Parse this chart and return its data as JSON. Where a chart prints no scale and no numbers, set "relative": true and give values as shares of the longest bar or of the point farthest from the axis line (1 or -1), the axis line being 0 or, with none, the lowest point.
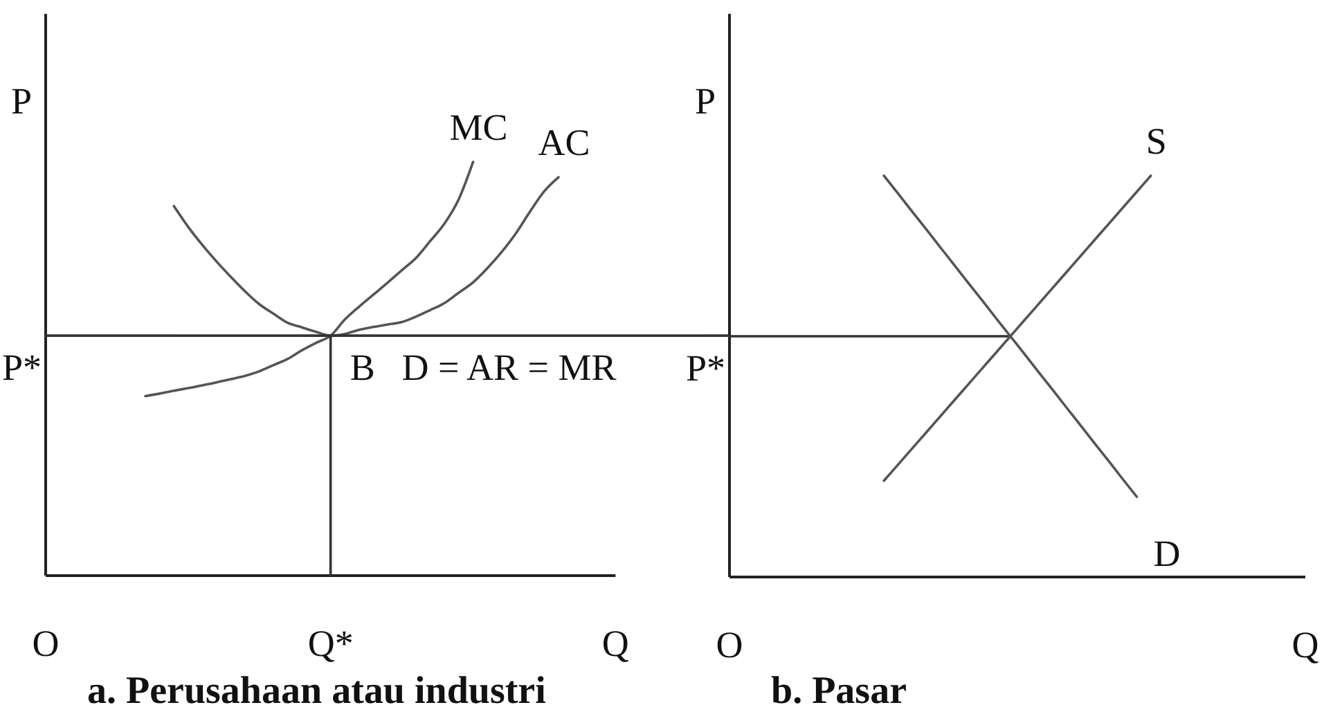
{
  "chart_data": [
    {
      "type": "line",
      "title": "a. Perusahaan atau industri",
      "ylabel": "P",
      "relative": true,
      "categories": [
        "O",
        null,
        null,
        null,
        null,
        null,
        null,
        null,
        null,
        null,
        null,
        null,
        null,
        null,
        null,
        null,
        null,
        null,
        null,
        null,
        "Q*",
        null,
        null,
        null,
        null,
        null,
        null,
        null,
        null,
        null,
        null,
        null,
        null,
        null,
        null,
        null,
        null,
        null,
        null,
        null,
        "Q",
        null,
        null,
        null,
        null,
        null,
        null,
        null,
        null
      ],
      "annotations": [
        {
          "text": "P*",
          "x": "O",
          "y": 0.58
        },
        {
          "text": "B",
          "x": "Q*",
          "y": 0.58
        }
      ],
      "series": [
        {
          "name": "MC",
          "color": "#555555",
          "values": [
            null,
            null,
            null,
            null,
            null,
            null,
            null,
            0.434,
            0.44,
            0.447,
            0.453,
            0.46,
            0.467,
            0.475,
            0.483,
            0.494,
            0.509,
            0.524,
            0.545,
            0.563,
            0.58,
            0.619,
            0.65,
            0.679,
            0.708,
            0.738,
            0.768,
            0.809,
            0.851,
            0.91,
            1.0,
            null,
            null,
            null,
            null,
            null,
            null,
            null,
            null,
            null,
            null,
            null,
            null,
            null,
            null,
            null,
            null,
            null,
            null
          ]
        },
        {
          "name": "AC",
          "color": "#555555",
          "values": [
            null,
            null,
            null,
            null,
            null,
            null,
            null,
            null,
            null,
            0.893,
            0.843,
            0.799,
            0.759,
            0.722,
            0.687,
            0.656,
            0.633,
            0.611,
            0.6,
            0.589,
            0.58,
            0.584,
            0.594,
            0.601,
            0.607,
            0.613,
            0.626,
            0.642,
            0.659,
            0.684,
            0.709,
            0.743,
            0.782,
            0.827,
            0.88,
            0.929,
            0.963,
            null,
            null,
            null,
            null,
            null,
            null,
            null,
            null,
            null,
            null,
            null,
            null
          ]
        },
        {
          "name": "D = AR = MR",
          "color": "#333333",
          "values": [
            0.58,
            0.58,
            0.58,
            0.58,
            0.58,
            0.58,
            0.58,
            0.58,
            0.58,
            0.58,
            0.58,
            0.58,
            0.58,
            0.58,
            0.58,
            0.58,
            0.58,
            0.58,
            0.58,
            0.58,
            0.58,
            0.58,
            0.58,
            0.58,
            0.58,
            0.58,
            0.58,
            0.58,
            0.58,
            0.58,
            0.58,
            0.58,
            0.58,
            0.58,
            0.58,
            0.58,
            0.58,
            0.58,
            0.58,
            0.58,
            0.58,
            0.58,
            0.58,
            0.58,
            0.58,
            0.58,
            0.58,
            0.58,
            0.58
          ]
        },
        {
          "color": "#333333",
          "x": [
            "Q*",
            "Q*"
          ],
          "values": [
            0,
            0.58
          ]
        }
      ]
    },
    {
      "type": "line",
      "title": "b. Pasar",
      "ylabel": "P",
      "relative": true,
      "categories": [
        "O",
        null,
        null,
        null,
        null,
        null,
        null,
        null,
        null,
        null,
        null,
        null,
        null,
        null,
        null,
        null,
        null,
        null,
        null,
        null,
        null,
        null,
        null,
        null,
        null,
        null,
        null,
        null,
        null,
        null,
        null,
        null,
        null,
        null,
        null,
        null,
        null,
        null,
        null,
        null,
        null,
        "Q"
      ],
      "annotations": [
        {
          "text": "P*",
          "x": "O",
          "y": 0.6
        }
      ],
      "series": [
        {
          "color": "#333333",
          "values": [
            0.6,
            0.6,
            0.6,
            0.6,
            0.6,
            0.6,
            0.6,
            0.6,
            0.6,
            0.6,
            0.6,
            0.6,
            0.6,
            0.6,
            0.6,
            0.6,
            0.6,
            0.6,
            0.6,
            0.6,
            0.6,
            null,
            null,
            null,
            null,
            null,
            null,
            null,
            null,
            null,
            null,
            null,
            null,
            null,
            null,
            null,
            null,
            null,
            null,
            null,
            null,
            null
          ]
        },
        {
          "name": "S",
          "color": "#555555",
          "values": [
            null,
            null,
            null,
            null,
            null,
            null,
            null,
            null,
            null,
            null,
            null,
            0.24,
            0.28,
            0.32,
            0.36,
            0.4,
            0.44,
            0.48,
            0.52,
            0.56,
            0.6,
            0.64,
            0.68,
            0.72,
            0.76,
            0.8,
            0.84,
            0.88,
            0.92,
            0.96,
            1.0,
            null,
            null,
            null,
            null,
            null,
            null,
            null,
            null,
            null,
            null,
            null
          ]
        },
        {
          "name": "D",
          "color": "#555555",
          "values": [
            null,
            null,
            null,
            null,
            null,
            null,
            null,
            null,
            null,
            null,
            null,
            1.0,
            0.956,
            0.911,
            0.867,
            0.822,
            0.778,
            0.733,
            0.689,
            0.644,
            0.6,
            0.556,
            0.511,
            0.467,
            0.422,
            0.378,
            0.333,
            0.289,
            0.244,
            0.2,
            null,
            null,
            null,
            null,
            null,
            null,
            null,
            null,
            null,
            null,
            null,
            null
          ]
        }
      ]
    }
  ]
}
